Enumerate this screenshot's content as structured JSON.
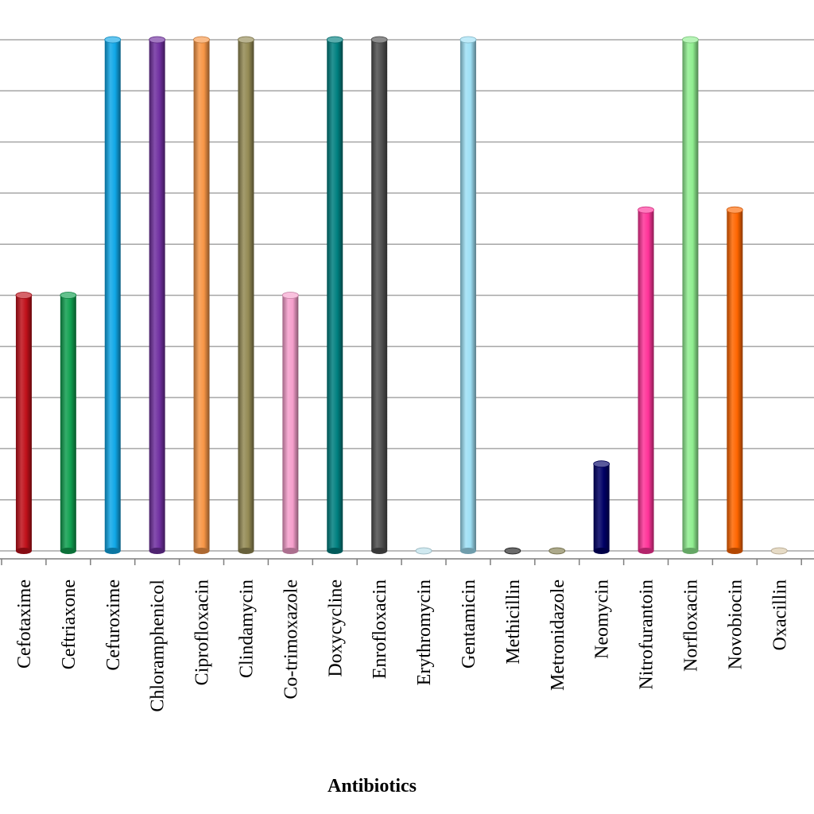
{
  "chart_data": {
    "type": "bar",
    "style": "3d-cylinder",
    "grid": true,
    "legend": "none",
    "xlabel": "Antibiotics",
    "ylabel": "",
    "ylim": [
      0,
      100
    ],
    "categories": [
      "Cefotaxime",
      "Ceftriaxone",
      "Cefuroxime",
      "Chloramphenicol",
      "Ciprofloxacin",
      "Clindamycin",
      "Co-trimoxazole",
      "Doxycycline",
      "Enrofloxacin",
      "Erythromycin",
      "Gentamicin",
      "Methicillin",
      "Metronidazole",
      "Neomycin",
      "Nitrofurantoin",
      "Norfloxacin",
      "Novobiocin",
      "Oxacillin"
    ],
    "values": [
      50,
      50,
      100,
      100,
      100,
      100,
      50,
      100,
      100,
      0,
      100,
      0,
      0,
      17,
      66.7,
      100,
      66.7,
      0
    ],
    "colors": [
      "#c0101a",
      "#10a050",
      "#10a8e8",
      "#7030a0",
      "#f79646",
      "#948a54",
      "#f69fcc",
      "#008080",
      "#505050",
      "#b7dde8",
      "#9ee0f5",
      "#1a1a1a",
      "#7f7a4c",
      "#000066",
      "#ff3399",
      "#90ee90",
      "#ff6600",
      "#d9c7a8"
    ]
  }
}
